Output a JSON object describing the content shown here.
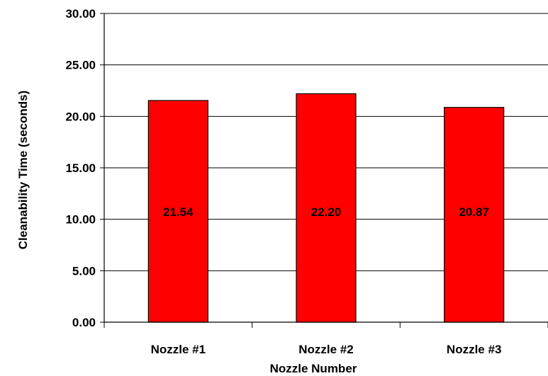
{
  "chart_data": {
    "type": "bar",
    "categories": [
      "Nozzle #1",
      "Nozzle #2",
      "Nozzle #3"
    ],
    "values": [
      21.54,
      22.2,
      20.87
    ],
    "data_labels": [
      "21.54",
      "22.20",
      "20.87"
    ],
    "ylim": [
      0,
      30
    ],
    "yticks": [
      0,
      5,
      10,
      15,
      20,
      25,
      30
    ],
    "ytick_labels": [
      "0.00",
      "5.00",
      "10.00",
      "15.00",
      "20.00",
      "25.00",
      "30.00"
    ],
    "xlabel": "Nozzle Number",
    "ylabel": "Cleanability Time (seconds)",
    "grid": true,
    "bar_color": "#ff0000"
  }
}
